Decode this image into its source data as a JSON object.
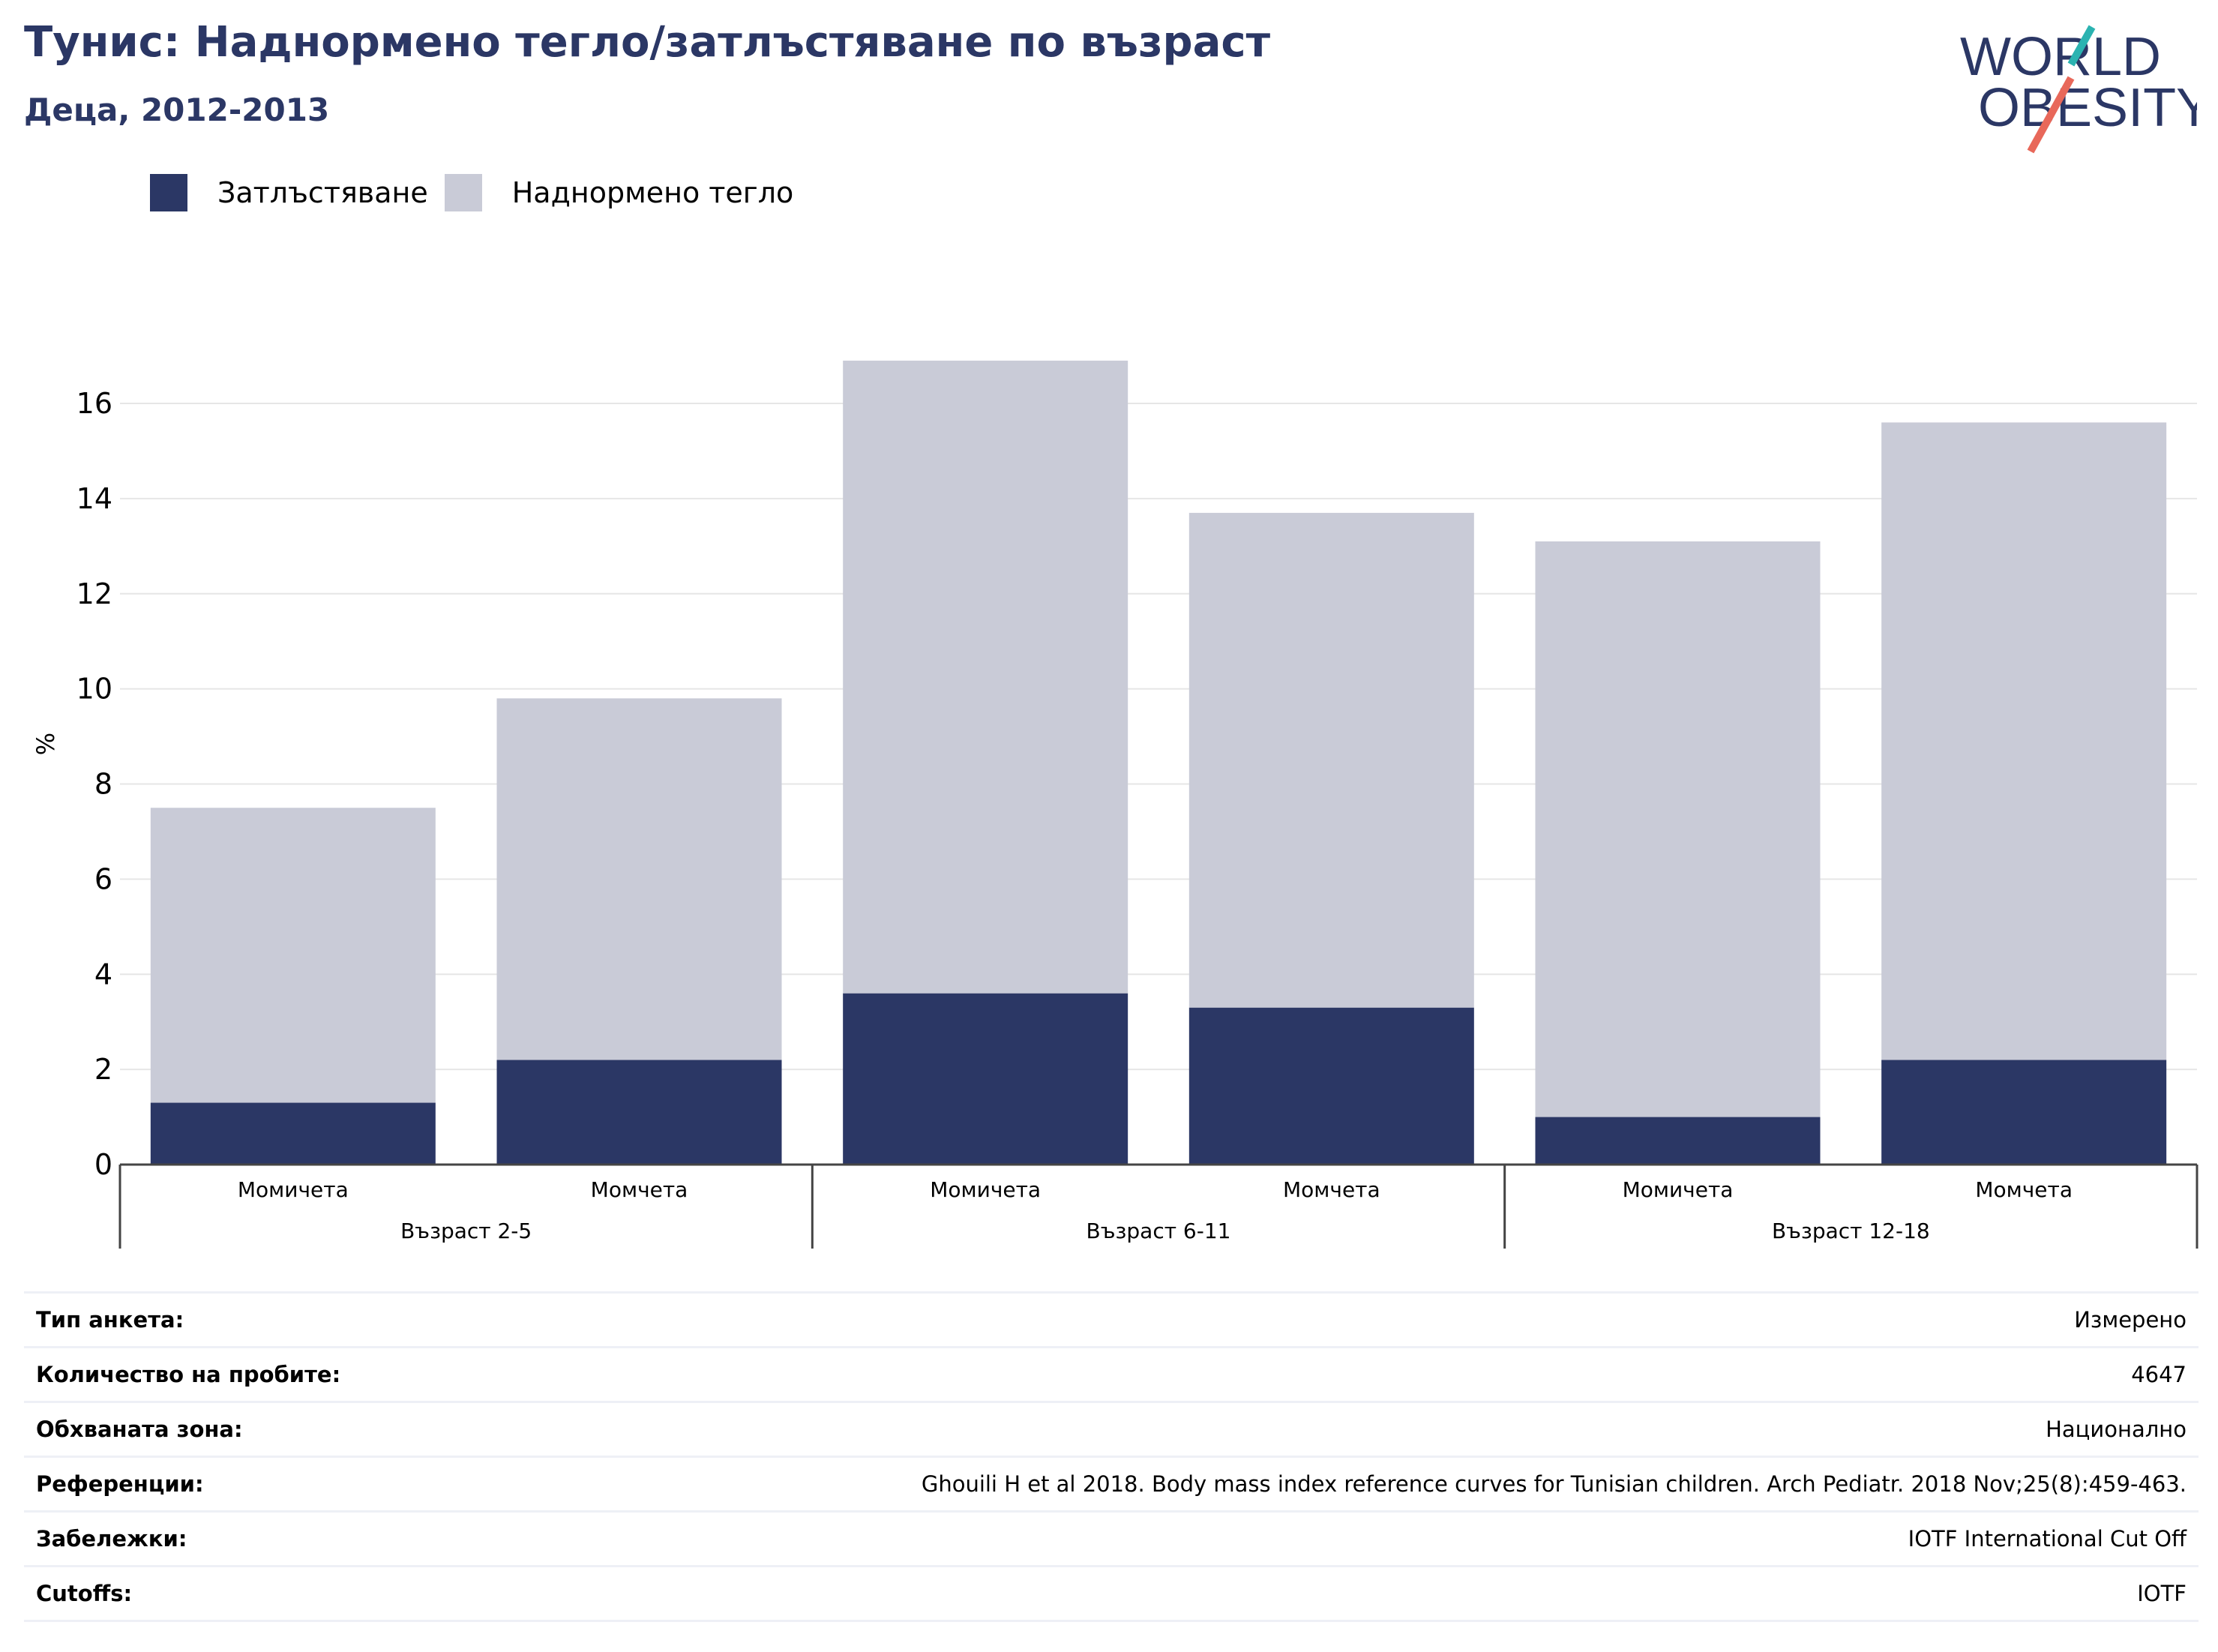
{
  "header": {
    "title": "Тунис: Наднормено тегло/затлъстяване по възраст",
    "subtitle": "Деца, 2012-2013"
  },
  "logo": {
    "line1": "WORLD",
    "line2": "OBESITY",
    "colors": {
      "text": "#2b3765",
      "slash_top": "#2bb3b1",
      "slash_bottom": "#e8685a"
    }
  },
  "legend": [
    {
      "label": "Затлъстяване",
      "color": "#2b3765"
    },
    {
      "label": "Наднормено тегло",
      "color": "#c9cbd7"
    }
  ],
  "chart_data": {
    "type": "bar",
    "stacked": true,
    "ylabel": "%",
    "ylim": [
      0,
      17
    ],
    "yticks": [
      0,
      2,
      4,
      6,
      8,
      10,
      12,
      14,
      16
    ],
    "grid": true,
    "categories": [
      "Момичета",
      "Момчета",
      "Момичета",
      "Момчета",
      "Момичета",
      "Момчета"
    ],
    "groups": [
      {
        "label": "Възраст 2-5",
        "size": 2
      },
      {
        "label": "Възраст 6-11",
        "size": 2
      },
      {
        "label": "Възраст 12-18",
        "size": 2
      }
    ],
    "series": [
      {
        "name": "Затлъстяване",
        "color": "#2b3765",
        "values": [
          1.3,
          2.2,
          3.6,
          3.3,
          1.0,
          2.2
        ]
      },
      {
        "name": "Наднормено тегло",
        "color": "#c9cbd7",
        "values": [
          6.2,
          7.6,
          13.3,
          10.4,
          12.1,
          13.4
        ]
      }
    ],
    "totals": [
      7.5,
      9.8,
      16.9,
      13.7,
      13.1,
      15.6
    ]
  },
  "info": [
    {
      "label": "Тип анкета:",
      "value": "Измерено"
    },
    {
      "label": "Количество на пробите:",
      "value": "4647"
    },
    {
      "label": "Обхваната зона:",
      "value": "Национално"
    },
    {
      "label": "Референции:",
      "value": "Ghouili H et al 2018. Body mass index reference curves for Tunisian children. Arch Pediatr. 2018 Nov;25(8):459-463."
    },
    {
      "label": "Забележки:",
      "value": "IOTF International Cut Off"
    },
    {
      "label": "Cutoffs:",
      "value": "IOTF"
    }
  ]
}
